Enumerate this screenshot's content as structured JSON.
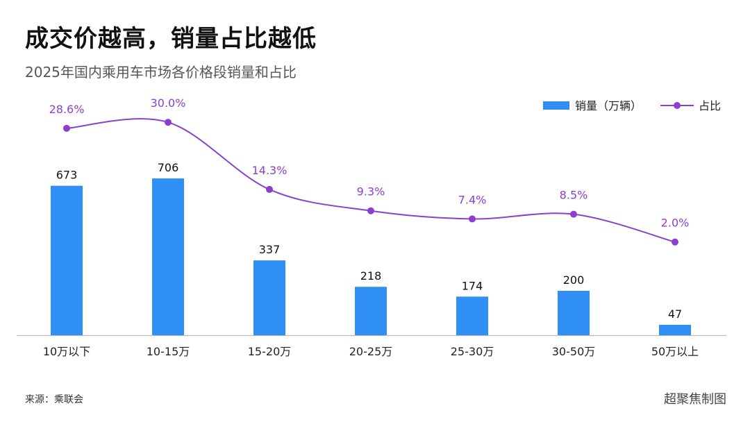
{
  "title": "成交价越高，销量占比越低",
  "subtitle": "2025年国内乘用车市场各价格段销量和占比",
  "source": "来源：乘联会",
  "credit": "超聚焦制图",
  "colors": {
    "bar": "#2f8ff5",
    "line": "#8a3fd1",
    "axis": "#bbbbbb"
  },
  "chart_data": {
    "type": "bar",
    "categories": [
      "10万以下",
      "10-15万",
      "15-20万",
      "20-25万",
      "25-30万",
      "30-50万",
      "50万以上"
    ],
    "series": [
      {
        "name": "销量（万辆）",
        "type": "bar",
        "values": [
          673,
          706,
          337,
          218,
          174,
          200,
          47
        ],
        "labels": [
          "673",
          "706",
          "337",
          "218",
          "174",
          "200",
          "47"
        ]
      },
      {
        "name": "占比",
        "type": "line",
        "values": [
          28.6,
          30.0,
          14.3,
          9.3,
          7.4,
          8.5,
          2.0
        ],
        "labels": [
          "28.6%",
          "30.0%",
          "14.3%",
          "9.3%",
          "7.4%",
          "8.5%",
          "2.0%"
        ]
      }
    ],
    "title": "成交价越高，销量占比越低",
    "subtitle": "2025年国内乘用车市场各价格段销量和占比",
    "legend": "top-right",
    "grid": false
  }
}
